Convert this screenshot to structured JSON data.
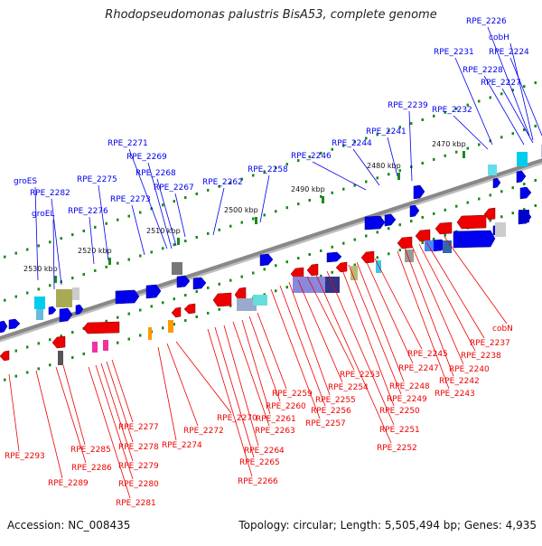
{
  "title": "Rhodopseudomonas palustris BisA53, complete genome",
  "accession_label": "Accession: NC_008435",
  "summary_label": "Topology: circular; Length: 5,505,494 bp; Genes: 4,935",
  "colors": {
    "forward_strand": "#0000ee",
    "reverse_strand": "#ee0000",
    "backbone": "#888888",
    "tick": "#1a8a1a"
  },
  "scale_ticks": [
    "2530 kbp",
    "2520 kbp",
    "2510 kbp",
    "2500 kbp",
    "2490 kbp",
    "2480 kbp",
    "2470 kbp"
  ],
  "top_labels": [
    "RPE_2226",
    "cobH",
    "RPE_2224",
    "RPE_2231",
    "RPE_2228",
    "RPE_2227",
    "RPE_2232",
    "RPE_2239",
    "RPE_2241",
    "RPE_2244",
    "RPE_2246",
    "RPE_2271",
    "RPE_2269",
    "RPE_2268",
    "RPE_2267",
    "RPE_2258",
    "RPE_2262",
    "RPE_2275",
    "RPE_2273",
    "groES",
    "RPE_2282",
    "groEL",
    "RPE_2276"
  ],
  "bottom_labels": [
    "cobN",
    "RPE_2237",
    "RPE_2238",
    "RPE_2240",
    "RPE_2242",
    "RPE_2243",
    "RPE_2245",
    "RPE_2247",
    "RPE_2248",
    "RPE_2249",
    "RPE_2250",
    "RPE_2251",
    "RPE_2252",
    "RPE_2253",
    "RPE_2254",
    "RPE_2255",
    "RPE_2256",
    "RPE_2257",
    "RPE_2259",
    "RPE_2260",
    "RPE_2261",
    "RPE_2263",
    "RPE_2264",
    "RPE_2265",
    "RPE_2266",
    "RPE_2270",
    "RPE_2272",
    "RPE_2274",
    "RPE_2277",
    "RPE_2278",
    "RPE_2279",
    "RPE_2280",
    "RPE_2281",
    "RPE_2285",
    "RPE_2286",
    "RPE_2289",
    "RPE_2293"
  ]
}
